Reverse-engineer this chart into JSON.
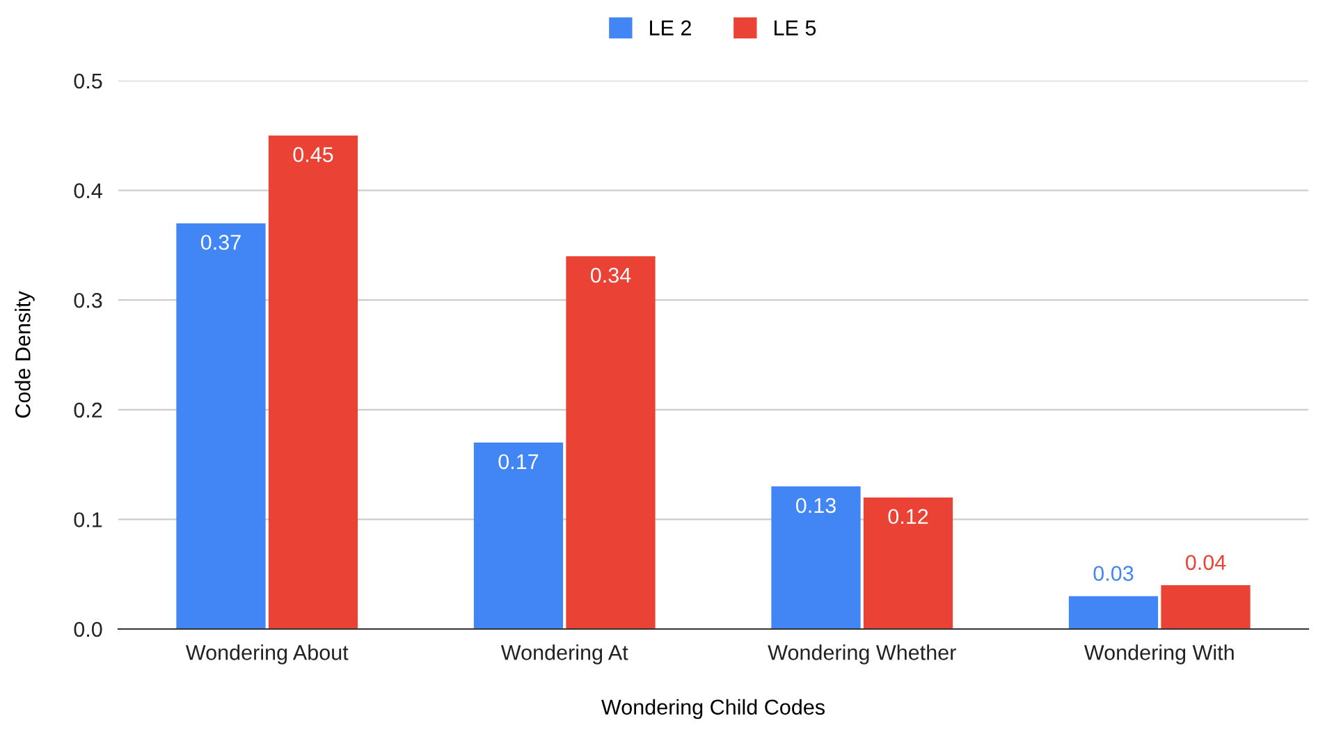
{
  "chart_data": {
    "type": "bar",
    "xlabel": "Wondering Child Codes",
    "ylabel": "Code Density",
    "categories": [
      "Wondering About",
      "Wondering At",
      "Wondering Whether",
      "Wondering With"
    ],
    "series": [
      {
        "name": "LE 2",
        "color": "#4285f4",
        "values": [
          0.37,
          0.17,
          0.13,
          0.03
        ]
      },
      {
        "name": "LE 5",
        "color": "#ea4335",
        "values": [
          0.45,
          0.34,
          0.12,
          0.04
        ]
      }
    ],
    "ylim": [
      0,
      0.5
    ],
    "yticks": [
      {
        "value": 0,
        "label": "0.0"
      },
      0.1,
      0.2,
      0.3,
      0.4,
      0.5
    ],
    "grid": "y",
    "legend": "top",
    "data_labels": true
  }
}
